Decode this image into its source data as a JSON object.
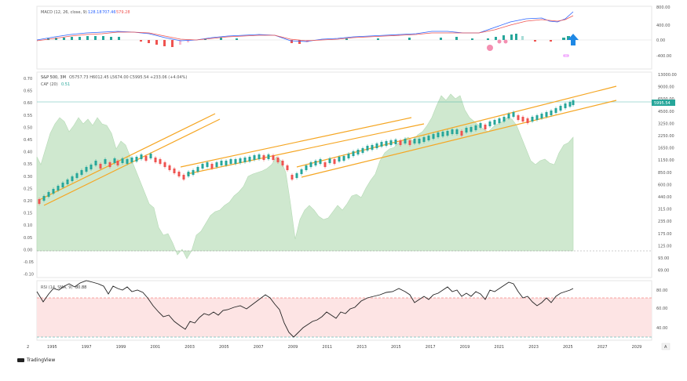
{
  "macd": {
    "label": "MACD (12, 26, close, 9)",
    "v1": "128.18",
    "v2": "707.46",
    "v3": "579.28",
    "axis": [
      "800.00",
      "400.00",
      "0.00",
      "-400.00"
    ]
  },
  "main": {
    "symbol": "S&P 500, 3M",
    "ohlc": "O5757.73 H6012.45 L5674.00 C5995.54 +233.06 (+4.04%)",
    "caf_label": "CAF (20)",
    "caf_value": "0.51",
    "price_tag": "5995.54",
    "left_axis": [
      "0.70",
      "0.65",
      "0.60",
      "0.55",
      "0.50",
      "0.45",
      "0.40",
      "0.35",
      "0.30",
      "0.25",
      "0.20",
      "0.15",
      "0.10",
      "0.05",
      "0.00",
      "-0.05",
      "-0.10"
    ],
    "right_axis": [
      "13000.00",
      "9000.00",
      "6500.00",
      "4500.00",
      "3250.00",
      "2250.00",
      "1650.00",
      "1150.00",
      "850.00",
      "600.00",
      "440.00",
      "315.00",
      "235.00",
      "175.00",
      "125.00",
      "93.00",
      "69.00"
    ]
  },
  "rsi": {
    "label": "RSI (14, SMA, 9)",
    "value": "80.88",
    "axis": [
      "80.00",
      "60.00",
      "40.00"
    ]
  },
  "x_axis": [
    "1995",
    "1997",
    "1999",
    "2001",
    "2003",
    "2005",
    "2007",
    "2009",
    "2011",
    "2013",
    "2015",
    "2017",
    "2019",
    "2021",
    "2023",
    "2025",
    "2027",
    "2029"
  ],
  "x_axis_left": "2",
  "footer": {
    "brand": "TradingView"
  },
  "auto_button": "A",
  "colors": {
    "up": "#26a69a",
    "down": "#ef5350",
    "channel": "#f5a623",
    "caf_fill": "#cfe8cf",
    "macd": "#2962ff",
    "signal": "#ef5350"
  }
}
